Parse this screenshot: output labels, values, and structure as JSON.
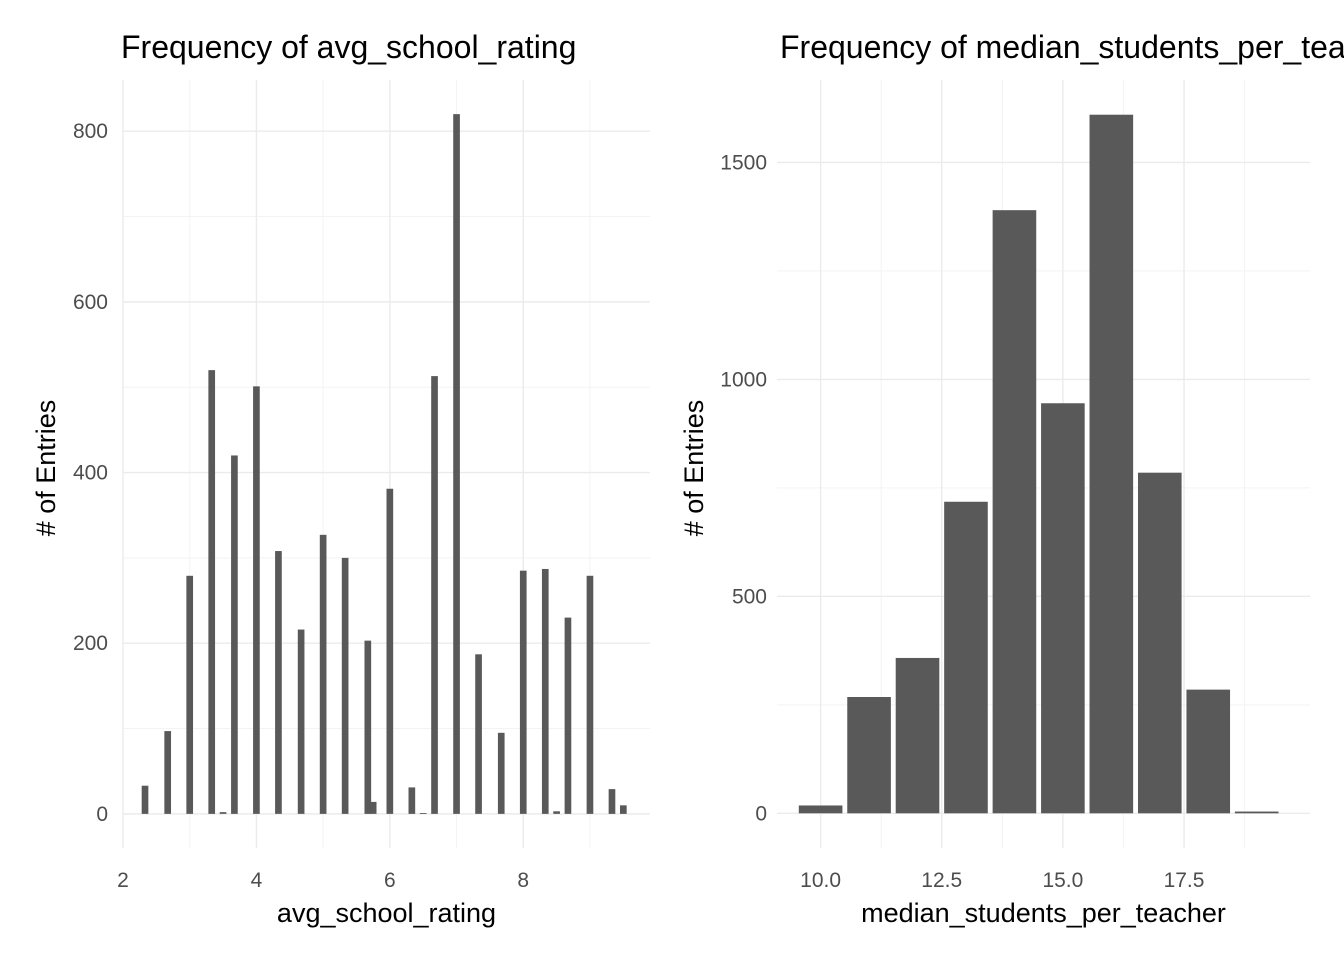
{
  "chart_data": [
    {
      "type": "bar",
      "title": "Frequency of avg_school_rating",
      "xlabel": "avg_school_rating",
      "ylabel": "# of Entries",
      "xlim": [
        2,
        9.9
      ],
      "ylim": [
        -40,
        860
      ],
      "x_ticks": [
        2,
        4,
        6,
        8
      ],
      "x_tick_labels": [
        "2",
        "4",
        "6",
        "8"
      ],
      "y_ticks": [
        0,
        200,
        400,
        600,
        800
      ],
      "y_tick_labels": [
        "0",
        "200",
        "400",
        "600",
        "800"
      ],
      "bar_width": 0.1,
      "x": [
        2.33,
        2.67,
        3.0,
        3.33,
        3.5,
        3.67,
        4.0,
        4.33,
        4.67,
        5.0,
        5.33,
        5.67,
        5.75,
        6.0,
        6.33,
        6.5,
        6.67,
        7.0,
        7.33,
        7.67,
        8.0,
        8.33,
        8.5,
        8.67,
        9.0,
        9.33,
        9.5
      ],
      "values": [
        33,
        97,
        279,
        520,
        2,
        420,
        501,
        308,
        216,
        327,
        300,
        203,
        14,
        381,
        31,
        1,
        513,
        820,
        187,
        95,
        285,
        287,
        3,
        230,
        279,
        29,
        10
      ],
      "grid": true,
      "color": "#595959"
    },
    {
      "type": "bar",
      "title": "Frequency of median_students_per_teacher",
      "xlabel": "median_students_per_teacher",
      "ylabel": "# of Entries",
      "xlim": [
        9.1,
        20.1
      ],
      "ylim": [
        -80,
        1690
      ],
      "x_ticks": [
        10.0,
        12.5,
        15.0,
        17.5
      ],
      "x_tick_labels": [
        "10.0",
        "12.5",
        "15.0",
        "17.5"
      ],
      "y_ticks": [
        0,
        500,
        1000,
        1500
      ],
      "y_tick_labels": [
        "0",
        "500",
        "1000",
        "1500"
      ],
      "bar_width": 0.9,
      "x": [
        10,
        11,
        12,
        13,
        14,
        15,
        16,
        17,
        18,
        19
      ],
      "values": [
        18,
        268,
        358,
        718,
        1390,
        945,
        1610,
        785,
        285,
        4
      ],
      "grid": true,
      "color": "#595959"
    }
  ]
}
